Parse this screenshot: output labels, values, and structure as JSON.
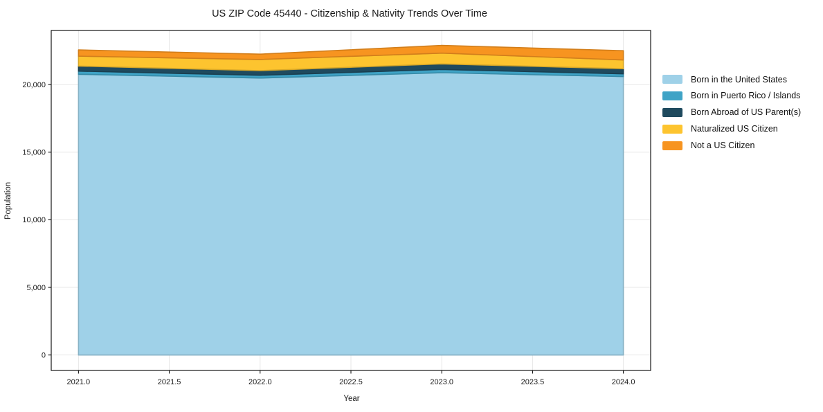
{
  "figure": {
    "background": "#ffffff",
    "frame_color": "#000000"
  },
  "chart_data": {
    "type": "area",
    "stacked": true,
    "title": "US ZIP Code 45440 - Citizenship & Nativity Trends Over Time",
    "xlabel": "Year",
    "ylabel": "Population",
    "x": [
      2021,
      2022,
      2023,
      2024
    ],
    "series": [
      {
        "name": "Born in the United States",
        "color": "#9fd1e8",
        "values": [
          20760,
          20485,
          20880,
          20590
        ]
      },
      {
        "name": "Born in Puerto Rico / Islands",
        "color": "#3fa3c6",
        "values": [
          235,
          205,
          240,
          205
        ]
      },
      {
        "name": "Born Abroad of US Parent(s)",
        "color": "#1f4a5e",
        "values": [
          375,
          345,
          410,
          380
        ]
      },
      {
        "name": "Naturalized US Citizen",
        "color": "#fdc42f",
        "values": [
          735,
          820,
          800,
          645
        ]
      },
      {
        "name": "Not a US Citizen",
        "color": "#f79420",
        "values": [
          460,
          395,
          565,
          685
        ]
      }
    ],
    "totals": [
      22565,
      22250,
      22895,
      22505
    ],
    "xlim": [
      2020.85,
      2024.15
    ],
    "ylim": [
      -1143,
      24003
    ],
    "xticks": {
      "values": [
        2021,
        2021.5,
        2022,
        2022.5,
        2023,
        2023.5,
        2024
      ],
      "labels": [
        "2021.0",
        "2021.5",
        "2022.0",
        "2022.5",
        "2023.0",
        "2023.5",
        "2024.0"
      ]
    },
    "yticks": {
      "values": [
        0,
        5000,
        10000,
        15000,
        20000
      ],
      "labels": [
        "0",
        "5,000",
        "10,000",
        "15,000",
        "20,000"
      ]
    },
    "grid": true,
    "grid_color": "#e7e7e7",
    "legend_position": "right-outside"
  }
}
